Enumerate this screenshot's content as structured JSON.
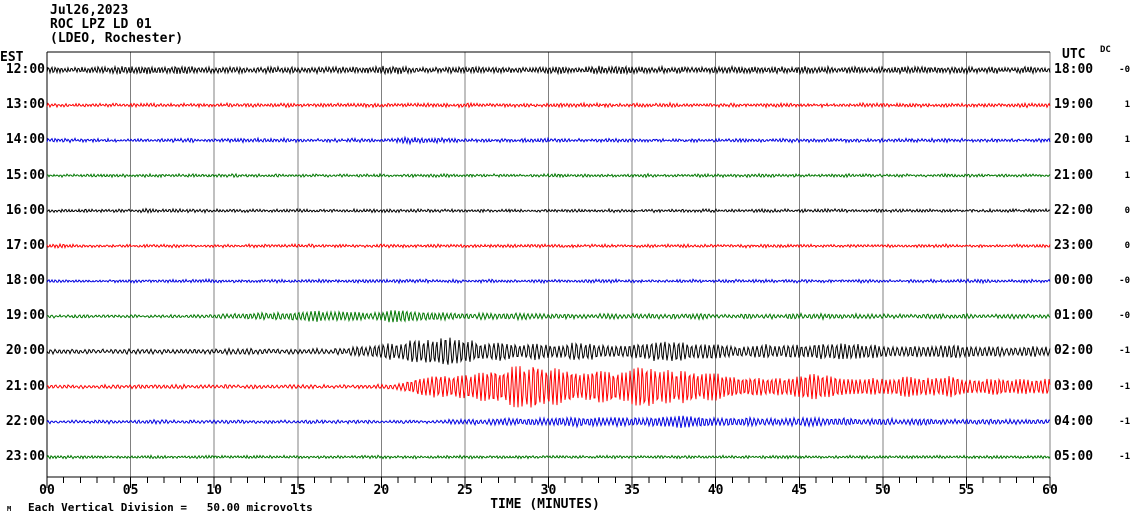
{
  "header": {
    "date_line": "Jul26,2023",
    "station_line": "ROC LPZ LD 01",
    "location_line": "(LDEO, Rochester)"
  },
  "left_axis_header": "EST",
  "right_axis_header": "UTC",
  "dc_column_header": "DC",
  "x_axis": {
    "title": "TIME (MINUTES)",
    "tick_labels": [
      "00",
      "05",
      "10",
      "15",
      "20",
      "25",
      "30",
      "35",
      "40",
      "45",
      "50",
      "55",
      "60"
    ],
    "minor_tick_every_minutes": 1,
    "major_tick_every_minutes": 5
  },
  "footer": {
    "scale_note": "Each Vertical Division =   50.00 microvolts",
    "corner_mark": "M"
  },
  "colors": {
    "black": "#000000",
    "red": "#ff0000",
    "blue": "#0000e0",
    "green": "#007700",
    "grid": "#808080",
    "border": "#000000",
    "background": "#ffffff"
  },
  "chart_data": {
    "type": "line",
    "title": "ROC LPZ LD 01 helicorder (LDEO, Rochester) Jul26,2023",
    "xlabel": "TIME (MINUTES)",
    "x_range_minutes": [
      0,
      60
    ],
    "grid": "vertical gray lines every 5 minutes",
    "legend_position": "none",
    "vertical_division_microvolts": 50.0,
    "rows": [
      {
        "est": "12:00",
        "utc": "18:00",
        "dc": "-0",
        "color": "black",
        "seed": 11,
        "freq": 5.0,
        "noise": 0.8,
        "envelope": [
          [
            0,
            2.6
          ],
          [
            8,
            3.2
          ],
          [
            12,
            2.4
          ],
          [
            20,
            3.0
          ],
          [
            28,
            2.4
          ],
          [
            34,
            3.0
          ],
          [
            42,
            2.5
          ],
          [
            50,
            2.8
          ],
          [
            60,
            2.5
          ]
        ]
      },
      {
        "est": "13:00",
        "utc": "19:00",
        "dc": "1",
        "color": "red",
        "seed": 22,
        "freq": 5.0,
        "noise": 0.7,
        "envelope": [
          [
            0,
            1.3
          ],
          [
            15,
            1.4
          ],
          [
            25,
            1.5
          ],
          [
            40,
            1.3
          ],
          [
            60,
            1.4
          ]
        ]
      },
      {
        "est": "14:00",
        "utc": "20:00",
        "dc": "1",
        "color": "blue",
        "seed": 33,
        "freq": 5.0,
        "noise": 0.7,
        "envelope": [
          [
            0,
            1.3
          ],
          [
            20,
            1.3
          ],
          [
            21.5,
            2.2
          ],
          [
            23.5,
            1.9
          ],
          [
            25,
            1.3
          ],
          [
            60,
            1.3
          ]
        ]
      },
      {
        "est": "15:00",
        "utc": "21:00",
        "dc": "1",
        "color": "green",
        "seed": 44,
        "freq": 5.0,
        "noise": 0.6,
        "envelope": [
          [
            0,
            1.1
          ],
          [
            60,
            1.1
          ]
        ]
      },
      {
        "est": "16:00",
        "utc": "22:00",
        "dc": "0",
        "color": "black",
        "seed": 55,
        "freq": 5.0,
        "noise": 0.6,
        "envelope": [
          [
            0,
            1.1
          ],
          [
            5.5,
            1.1
          ],
          [
            6,
            1.9
          ],
          [
            6.5,
            1.1
          ],
          [
            60,
            1.1
          ]
        ]
      },
      {
        "est": "17:00",
        "utc": "23:00",
        "dc": "0",
        "color": "red",
        "seed": 66,
        "freq": 5.0,
        "noise": 0.6,
        "envelope": [
          [
            0,
            1.7
          ],
          [
            2,
            1.1
          ],
          [
            60,
            1.1
          ]
        ]
      },
      {
        "est": "18:00",
        "utc": "00:00",
        "dc": "-0",
        "color": "blue",
        "seed": 77,
        "freq": 5.0,
        "noise": 0.6,
        "envelope": [
          [
            0,
            1.2
          ],
          [
            60,
            1.2
          ]
        ]
      },
      {
        "est": "19:00",
        "utc": "01:00",
        "dc": "-0",
        "color": "green",
        "seed": 88,
        "freq": 4.2,
        "noise": 0.6,
        "envelope": [
          [
            0,
            1.1
          ],
          [
            8.5,
            1.1
          ],
          [
            10,
            1.8
          ],
          [
            12,
            2.6
          ],
          [
            14,
            3.6
          ],
          [
            16,
            4.4
          ],
          [
            18,
            4.2
          ],
          [
            19,
            3.4
          ],
          [
            20,
            4.2
          ],
          [
            21,
            5.4
          ],
          [
            22,
            4.0
          ],
          [
            24,
            3.0
          ],
          [
            26,
            2.6
          ],
          [
            30,
            2.3
          ],
          [
            36,
            2.1
          ],
          [
            44,
            2.0
          ],
          [
            52,
            1.8
          ],
          [
            60,
            1.6
          ]
        ]
      },
      {
        "est": "20:00",
        "utc": "02:00",
        "dc": "-1",
        "color": "black",
        "seed": 99,
        "freq": 3.8,
        "noise": 0.7,
        "envelope": [
          [
            0,
            1.9
          ],
          [
            10,
            1.9
          ],
          [
            12,
            2.3
          ],
          [
            15,
            2.0
          ],
          [
            17,
            2.4
          ],
          [
            18,
            3.5
          ],
          [
            19,
            4.5
          ],
          [
            20,
            6.5
          ],
          [
            21,
            8.5
          ],
          [
            22,
            10.5
          ],
          [
            23,
            12.5
          ],
          [
            24,
            11.5
          ],
          [
            25,
            9.0
          ],
          [
            26,
            8.0
          ],
          [
            27,
            9.0
          ],
          [
            28,
            8.0
          ],
          [
            29,
            7.0
          ],
          [
            30,
            6.0
          ],
          [
            31,
            7.0
          ],
          [
            32,
            8.0
          ],
          [
            33,
            7.0
          ],
          [
            34,
            6.0
          ],
          [
            35,
            6.5
          ],
          [
            36,
            8.0
          ],
          [
            37,
            9.0
          ],
          [
            38,
            8.0
          ],
          [
            39,
            7.0
          ],
          [
            40,
            6.0
          ],
          [
            41,
            5.0
          ],
          [
            42,
            5.0
          ],
          [
            43,
            6.0
          ],
          [
            44,
            5.0
          ],
          [
            45,
            5.0
          ],
          [
            46,
            6.0
          ],
          [
            47,
            7.0
          ],
          [
            48,
            6.5
          ],
          [
            49,
            6.0
          ],
          [
            50,
            6.0
          ],
          [
            51,
            5.0
          ],
          [
            52,
            5.0
          ],
          [
            53,
            5.0
          ],
          [
            54,
            6.0
          ],
          [
            55,
            5.0
          ],
          [
            56,
            4.0
          ],
          [
            57,
            5.0
          ],
          [
            58,
            4.0
          ],
          [
            60,
            4.0
          ]
        ]
      },
      {
        "est": "21:00",
        "utc": "03:00",
        "dc": "-1",
        "color": "red",
        "seed": 111,
        "freq": 4.0,
        "noise": 0.7,
        "envelope": [
          [
            0,
            1.4
          ],
          [
            19,
            1.4
          ],
          [
            20,
            1.6
          ],
          [
            21,
            3.0
          ],
          [
            22,
            6.0
          ],
          [
            23,
            9.0
          ],
          [
            24,
            11.0
          ],
          [
            25,
            13.0
          ],
          [
            26,
            15.0
          ],
          [
            27,
            17.0
          ],
          [
            28,
            19.0
          ],
          [
            29,
            21.0
          ],
          [
            30,
            19.0
          ],
          [
            31,
            15.0
          ],
          [
            32,
            12.0
          ],
          [
            33,
            14.0
          ],
          [
            34,
            17.0
          ],
          [
            35,
            19.0
          ],
          [
            36,
            20.0
          ],
          [
            37,
            18.0
          ],
          [
            38,
            15.0
          ],
          [
            39,
            13.0
          ],
          [
            40,
            12.0
          ],
          [
            41,
            11.0
          ],
          [
            42,
            10.0
          ],
          [
            43,
            9.5
          ],
          [
            44,
            10.0
          ],
          [
            45,
            12.0
          ],
          [
            46,
            13.0
          ],
          [
            47,
            12.0
          ],
          [
            48,
            10.0
          ],
          [
            49,
            9.0
          ],
          [
            50,
            9.0
          ],
          [
            51,
            9.0
          ],
          [
            52,
            8.5
          ],
          [
            53,
            8.0
          ],
          [
            54,
            9.0
          ],
          [
            55,
            8.0
          ],
          [
            56,
            7.5
          ],
          [
            57,
            7.0
          ],
          [
            58,
            7.0
          ],
          [
            59,
            6.5
          ],
          [
            60,
            6.5
          ]
        ]
      },
      {
        "est": "22:00",
        "utc": "04:00",
        "dc": "-1",
        "color": "blue",
        "seed": 122,
        "freq": 4.2,
        "noise": 0.6,
        "envelope": [
          [
            0,
            1.3
          ],
          [
            23,
            1.3
          ],
          [
            24,
            1.8
          ],
          [
            26,
            2.4
          ],
          [
            28,
            2.6
          ],
          [
            30,
            3.4
          ],
          [
            31,
            4.0
          ],
          [
            32,
            4.6
          ],
          [
            33,
            4.0
          ],
          [
            34,
            4.6
          ],
          [
            35,
            4.0
          ],
          [
            36,
            3.6
          ],
          [
            37,
            4.2
          ],
          [
            38,
            4.6
          ],
          [
            39,
            4.0
          ],
          [
            40,
            3.6
          ],
          [
            41,
            3.0
          ],
          [
            42,
            3.6
          ],
          [
            43,
            3.0
          ],
          [
            45,
            3.4
          ],
          [
            47,
            3.0
          ],
          [
            48,
            3.4
          ],
          [
            50,
            2.6
          ],
          [
            52,
            2.6
          ],
          [
            54,
            2.3
          ],
          [
            56,
            2.1
          ],
          [
            58,
            2.1
          ],
          [
            60,
            1.9
          ]
        ]
      },
      {
        "est": "23:00",
        "utc": "05:00",
        "dc": "-1",
        "color": "green",
        "seed": 133,
        "freq": 5.0,
        "noise": 0.5,
        "envelope": [
          [
            0,
            1.1
          ],
          [
            60,
            1.1
          ]
        ]
      }
    ]
  }
}
